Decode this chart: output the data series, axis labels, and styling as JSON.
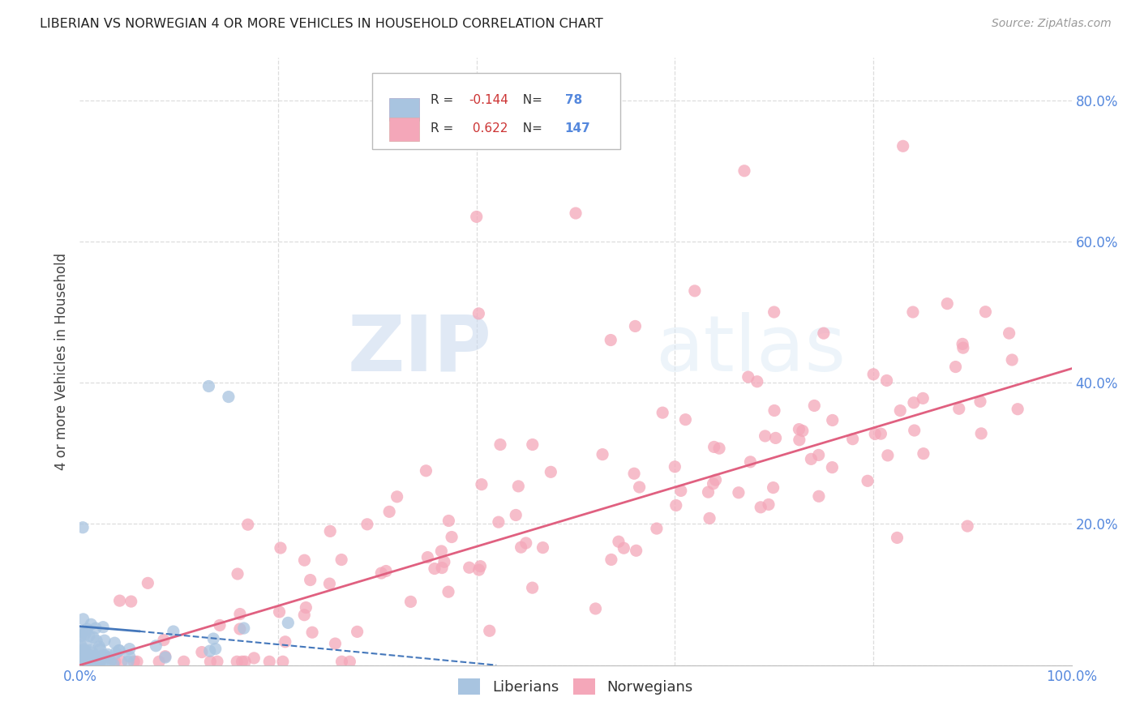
{
  "title": "LIBERIAN VS NORWEGIAN 4 OR MORE VEHICLES IN HOUSEHOLD CORRELATION CHART",
  "source": "Source: ZipAtlas.com",
  "ylabel": "4 or more Vehicles in Household",
  "xlim": [
    0.0,
    1.0
  ],
  "ylim": [
    0.0,
    0.86
  ],
  "x_ticks": [
    0.0,
    1.0
  ],
  "x_tick_labels": [
    "0.0%",
    "100.0%"
  ],
  "y_ticks": [
    0.0,
    0.2,
    0.4,
    0.6,
    0.8
  ],
  "y_tick_labels": [
    "",
    "20.0%",
    "40.0%",
    "60.0%",
    "80.0%"
  ],
  "liberian_color": "#a8c4e0",
  "norwegian_color": "#f4a7b9",
  "liberian_line_color": "#4477bb",
  "norwegian_line_color": "#e06080",
  "liberian_R": -0.144,
  "liberian_N": 78,
  "norwegian_R": 0.622,
  "norwegian_N": 147,
  "watermark_zip": "ZIP",
  "watermark_atlas": "atlas",
  "background_color": "#ffffff",
  "grid_color": "#dddddd",
  "legend_liberian": "Liberians",
  "legend_norwegian": "Norwegians",
  "tick_color": "#5588dd",
  "nor_line_x0": 0.0,
  "nor_line_x1": 1.0,
  "nor_line_y0": 0.0,
  "nor_line_y1": 0.42,
  "lib_line_x0": 0.0,
  "lib_line_x1": 0.42,
  "lib_line_y0": 0.055,
  "lib_line_y1": 0.0
}
